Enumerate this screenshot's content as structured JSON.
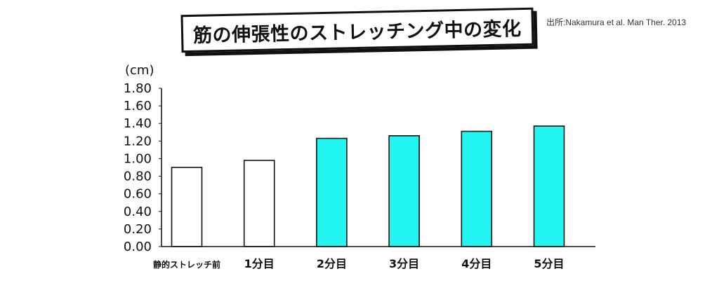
{
  "header": {
    "title": "筋の伸張性のストレッチング中の変化",
    "source": "出所:Nakamura et al. Man Ther. 2013"
  },
  "colors": {
    "highlight_fill": "#22f5ef",
    "plain_fill": "#ffffff",
    "stroke": "#111111"
  },
  "chart_data": {
    "type": "bar",
    "title": "筋の伸張性のストレッチング中の変化",
    "xlabel": "",
    "ylabel": "(cm)",
    "ylim": [
      0,
      1.8
    ],
    "yticks": [
      "0.00",
      "0.20",
      "0.40",
      "0.60",
      "0.80",
      "1.00",
      "1.20",
      "1.40",
      "1.60",
      "1.80"
    ],
    "categories": [
      "静的ストレッチ前",
      "1分目",
      "2分目",
      "3分目",
      "4分目",
      "5分目"
    ],
    "values": [
      0.9,
      0.98,
      1.23,
      1.26,
      1.31,
      1.37
    ],
    "highlighted": [
      false,
      false,
      true,
      true,
      true,
      true
    ],
    "grid": false,
    "legend": "none"
  }
}
